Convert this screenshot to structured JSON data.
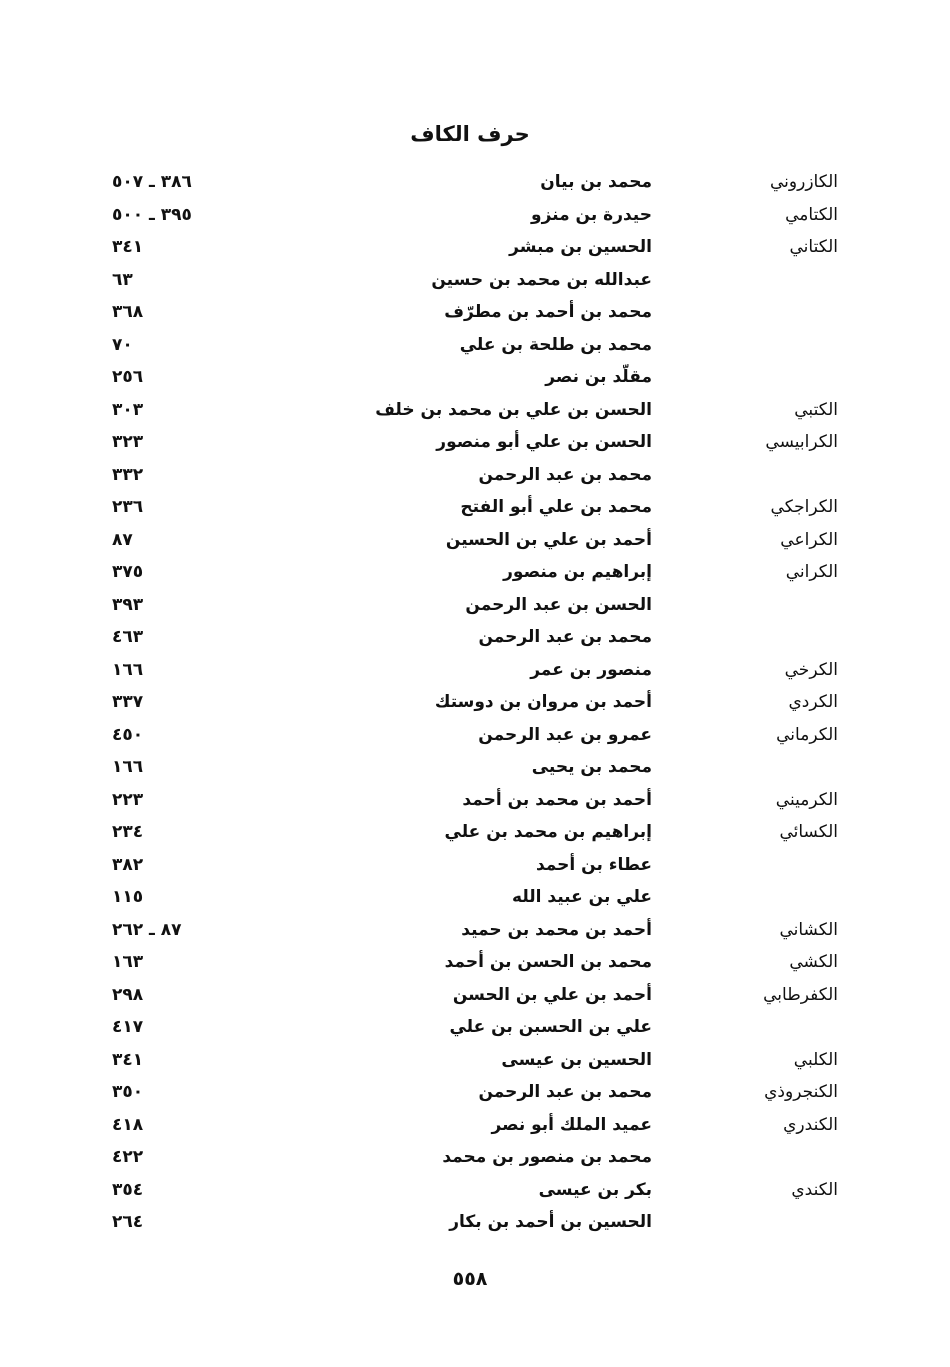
{
  "header": {
    "title": "حرف الكاف"
  },
  "entries": [
    {
      "nisba": "الكازروني",
      "name": "محمد بن بيان",
      "pages": "٣٨٦ ـ ٥٠٧"
    },
    {
      "nisba": "الكتامي",
      "name": "حيدرة بن منزو",
      "pages": "٣٩٥ ـ ٥٠٠"
    },
    {
      "nisba": "الكتاني",
      "name": "الحسين بن مبشر",
      "pages": "٣٤١"
    },
    {
      "nisba": "",
      "name": "عبدالله بن محمد بن حسين",
      "pages": "٦٣"
    },
    {
      "nisba": "",
      "name": "محمد بن أحمد بن مطرّف",
      "pages": "٣٦٨"
    },
    {
      "nisba": "",
      "name": "محمد بن طلحة بن علي",
      "pages": "٧٠"
    },
    {
      "nisba": "",
      "name": "مقلّد بن نصر",
      "pages": "٢٥٦"
    },
    {
      "nisba": "الكتبي",
      "name": "الحسن بن علي بن محمد بن خلف",
      "pages": "٣٠٣"
    },
    {
      "nisba": "الكرابيسي",
      "name": "الحسن بن علي أبو منصور",
      "pages": "٣٢٣"
    },
    {
      "nisba": "",
      "name": "محمد بن عبد الرحمن",
      "pages": "٣٣٢"
    },
    {
      "nisba": "الكراجكي",
      "name": "محمد بن علي أبو الفتح",
      "pages": "٢٣٦"
    },
    {
      "nisba": "الكراعي",
      "name": "أحمد بن علي بن الحسين",
      "pages": "٨٧"
    },
    {
      "nisba": "الكراني",
      "name": "إبراهيم بن منصور",
      "pages": "٣٧٥"
    },
    {
      "nisba": "",
      "name": "الحسن بن عبد الرحمن",
      "pages": "٣٩٣"
    },
    {
      "nisba": "",
      "name": "محمد بن عبد الرحمن",
      "pages": "٤٦٣"
    },
    {
      "nisba": "الكرخي",
      "name": "منصور بن عمر",
      "pages": "١٦٦"
    },
    {
      "nisba": "الكردي",
      "name": "أحمد بن مروان بن دوستك",
      "pages": "٣٣٧"
    },
    {
      "nisba": "الكرماني",
      "name": "عمرو بن عبد الرحمن",
      "pages": "٤٥٠"
    },
    {
      "nisba": "",
      "name": "محمد بن يحيى",
      "pages": "١٦٦"
    },
    {
      "nisba": "الكرميني",
      "name": "أحمد بن محمد بن أحمد",
      "pages": "٢٢٣"
    },
    {
      "nisba": "الكسائي",
      "name": "إبراهيم بن محمد بن علي",
      "pages": "٢٣٤"
    },
    {
      "nisba": "",
      "name": "عطاء بن أحمد",
      "pages": "٣٨٢"
    },
    {
      "nisba": "",
      "name": "علي بن عبيد الله",
      "pages": "١١٥"
    },
    {
      "nisba": "الكشاني",
      "name": "أحمد بن محمد بن حميد",
      "pages": "٨٧ ـ ٢٦٢"
    },
    {
      "nisba": "الكشي",
      "name": "محمد بن الحسن بن أحمد",
      "pages": "١٦٣"
    },
    {
      "nisba": "الكفرطابي",
      "name": "أحمد بن علي بن الحسن",
      "pages": "٢٩٨"
    },
    {
      "nisba": "",
      "name": "علي بن الحسبن بن علي",
      "pages": "٤١٧"
    },
    {
      "nisba": "الكلبي",
      "name": "الحسين بن عيسى",
      "pages": "٣٤١"
    },
    {
      "nisba": "الكنجروذي",
      "name": "محمد بن عبد الرحمن",
      "pages": "٣٥٠"
    },
    {
      "nisba": "الكندري",
      "name": "عميد الملك أبو نصر",
      "pages": "٤١٨"
    },
    {
      "nisba": "",
      "name": "محمد بن منصور بن محمد",
      "pages": "٤٢٢"
    },
    {
      "nisba": "الكندي",
      "name": "بكر بن عيسى",
      "pages": "٣٥٤"
    },
    {
      "nisba": "",
      "name": "الحسين بن أحمد بن بكار",
      "pages": "٢٦٤"
    }
  ],
  "footer": {
    "page_number": "٥٥٨"
  }
}
